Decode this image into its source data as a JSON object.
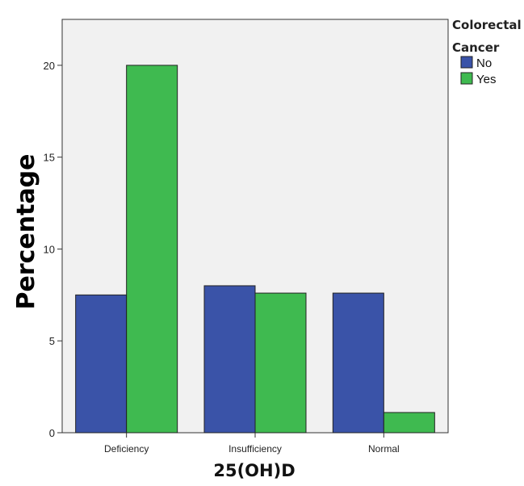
{
  "chart_data": {
    "type": "bar",
    "title": "",
    "xlabel": "25(OH)D",
    "ylabel": "Percentage",
    "categories": [
      "Deficiency",
      "Insufficiency",
      "Normal"
    ],
    "series": [
      {
        "name": "No",
        "color": "#3a53a8",
        "values": [
          7.5,
          8.0,
          7.6
        ]
      },
      {
        "name": "Yes",
        "color": "#3fba50",
        "values": [
          20.0,
          7.6,
          1.1
        ]
      }
    ],
    "ylim": [
      0,
      22.5
    ],
    "yticks": [
      "0",
      "5",
      "10",
      "15",
      "20"
    ],
    "legend": {
      "title_line1": "Colorectal",
      "title_line2": "Cancer",
      "placement": "right"
    },
    "grid": false,
    "background_color": "#f1f1f1"
  }
}
